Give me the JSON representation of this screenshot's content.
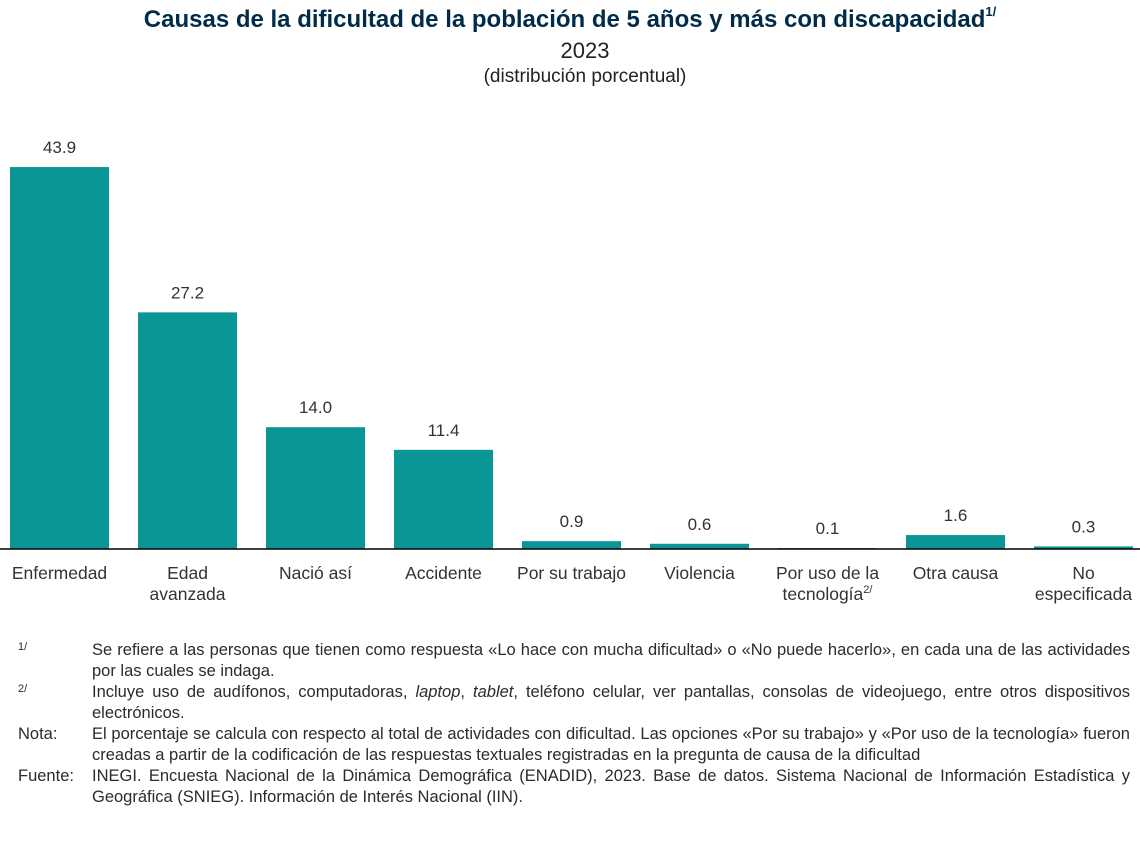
{
  "title": {
    "text": "Causas de la dificultad de la población de 5 años y más con discapacidad",
    "note_ref": "1/",
    "year": "2023",
    "subtitle": "(distribución porcentual)"
  },
  "colors": {
    "bar": "#0a9696",
    "title": "#002b49",
    "axis": "#000000"
  },
  "chart_data": {
    "type": "bar",
    "categories": [
      [
        "Enfermedad"
      ],
      [
        "Edad",
        "avanzada"
      ],
      [
        "Nació así"
      ],
      [
        "Accidente"
      ],
      [
        "Por su trabajo"
      ],
      [
        "Violencia"
      ],
      [
        "Por uso de la",
        "tecnología"
      ],
      [
        "Otra causa"
      ],
      [
        "No",
        "especificada"
      ]
    ],
    "category_note_refs": [
      "",
      "",
      "",
      "",
      "",
      "",
      "2/",
      "",
      ""
    ],
    "values": [
      43.9,
      27.2,
      14.0,
      11.4,
      0.9,
      0.6,
      0.1,
      1.6,
      0.3
    ],
    "value_labels": [
      "43.9",
      "27.2",
      "14.0",
      "11.4",
      "0.9",
      "0.6",
      "0.1",
      "1.6",
      "0.3"
    ],
    "ylim": [
      0,
      50
    ],
    "grid": false,
    "legend": "none"
  },
  "notes": [
    {
      "mark": "1/",
      "text": "Se refiere a las personas que tienen como respuesta «Lo hace con mucha dificultad» o «No puede hacerlo», en cada una de las actividades por las cuales se indaga."
    },
    {
      "mark": "2/",
      "text_a": "Incluye uso de audífonos, computadoras, ",
      "italic_a": "laptop",
      "sep": ", ",
      "italic_b": "tablet",
      "text_b": ", teléfono celular, ver pantallas, consolas de videojuego, entre otros dispositivos electrónicos."
    },
    {
      "mark": "Nota:",
      "text": "El porcentaje se calcula con respecto al total de actividades con dificultad. Las opciones «Por su trabajo» y «Por uso de la tecnología» fueron creadas a partir de la codificación de las respuestas textuales registradas en la pregunta de causa de la dificultad"
    },
    {
      "mark": "Fuente:",
      "text": "INEGI. Encuesta Nacional de la Dinámica Demográfica (ENADID), 2023. Base de datos. Sistema Nacional de Información Estadística y Geográfica (SNIEG). Información de Interés Nacional (IIN)."
    }
  ]
}
